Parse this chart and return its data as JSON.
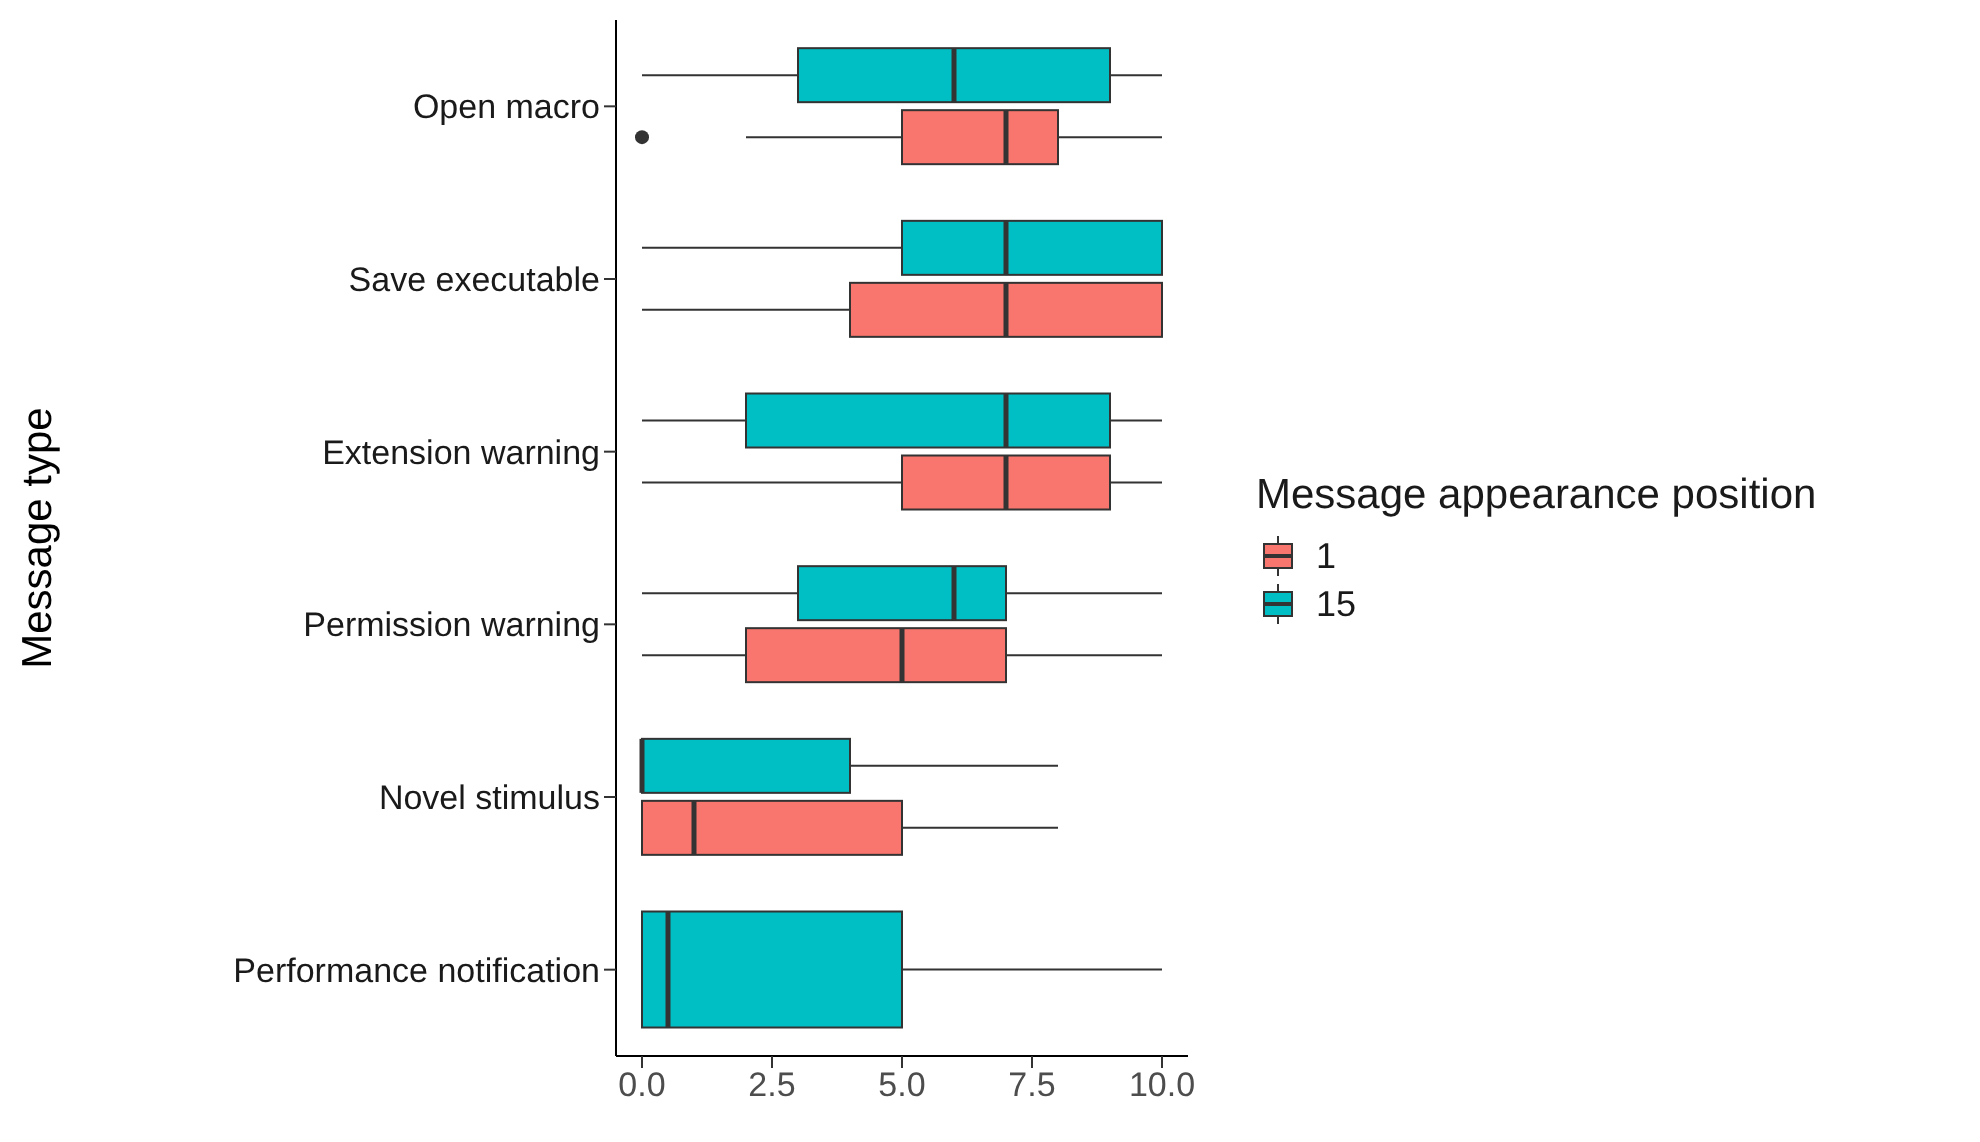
{
  "chart_data": {
    "type": "box",
    "orientation": "horizontal",
    "xlabel": null,
    "ylabel": "Message type",
    "legend_title": "Message appearance position",
    "legend": "right",
    "categories": [
      "Open macro",
      "Save executable",
      "Extension warning",
      "Permission warning",
      "Novel stimulus",
      "Performance notification"
    ],
    "xlim": [
      -0.5,
      10.5
    ],
    "xticks": [
      {
        "value": 0,
        "label": "0.0"
      },
      {
        "value": 2.5,
        "label": "2.5"
      },
      {
        "value": 5,
        "label": "5.0"
      },
      {
        "value": 7.5,
        "label": "7.5"
      },
      {
        "value": 10,
        "label": "10.0"
      }
    ],
    "series": [
      {
        "name": "1",
        "color": "#f8766d",
        "boxes": [
          {
            "low": 2,
            "q1": 5,
            "median": 7,
            "q3": 8,
            "high": 10,
            "outliers": [
              0
            ]
          },
          {
            "low": 0,
            "q1": 4,
            "median": 7,
            "q3": 10,
            "high": 10
          },
          {
            "low": 0,
            "q1": 5,
            "median": 7,
            "q3": 9,
            "high": 10
          },
          {
            "low": 0,
            "q1": 2,
            "median": 5,
            "q3": 7,
            "high": 10
          },
          {
            "low": 0,
            "q1": 0,
            "median": 1,
            "q3": 5,
            "high": 8
          },
          null
        ]
      },
      {
        "name": "15",
        "color": "#00bfc4",
        "boxes": [
          {
            "low": 0,
            "q1": 3,
            "median": 6,
            "q3": 9,
            "high": 10
          },
          {
            "low": 0,
            "q1": 5,
            "median": 7,
            "q3": 10,
            "high": 10
          },
          {
            "low": 0,
            "q1": 2,
            "median": 7,
            "q3": 9,
            "high": 10
          },
          {
            "low": 0,
            "q1": 3,
            "median": 6,
            "q3": 7,
            "high": 10
          },
          {
            "low": 0,
            "q1": 0,
            "median": 0,
            "q3": 4,
            "high": 8
          },
          {
            "low": 0,
            "q1": 0,
            "median": 0.5,
            "q3": 5,
            "high": 10
          }
        ]
      }
    ]
  }
}
